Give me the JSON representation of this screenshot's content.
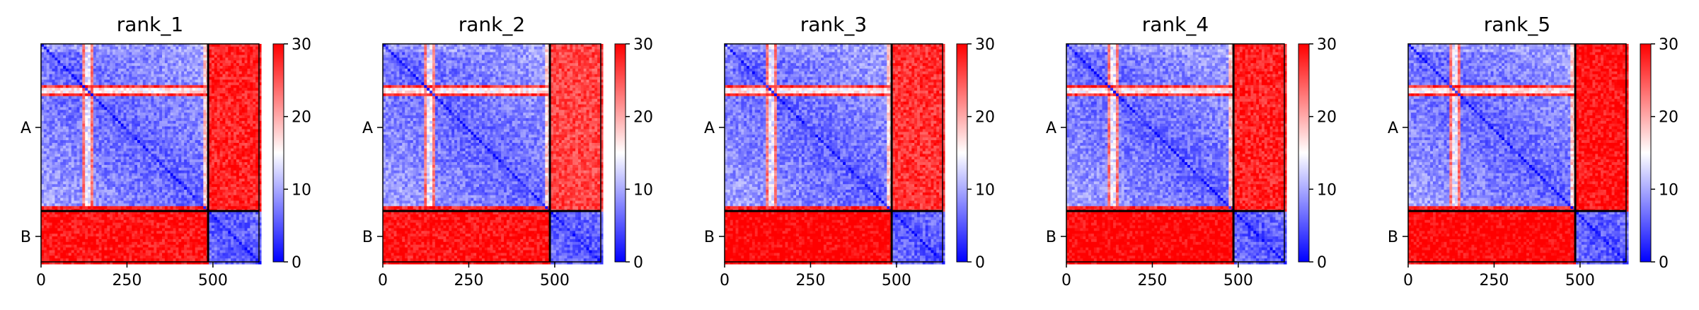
{
  "chart_data": [
    {
      "type": "heatmap",
      "title": "rank_1",
      "xticks": [
        0,
        250,
        500
      ],
      "ytick_labels": [
        "A",
        "B"
      ],
      "colorbar": {
        "ticks": [
          0,
          10,
          20,
          30
        ],
        "range": [
          0,
          30
        ],
        "colormap": "bwr"
      },
      "xlim": [
        0,
        634
      ],
      "chains": [
        {
          "name": "A",
          "start": 0,
          "end": 486
        },
        {
          "name": "B",
          "start": 486,
          "end": 634
        }
      ],
      "blocks": {
        "AA": 6,
        "AB": 28,
        "BA": 29,
        "BB": 5
      },
      "high_error_bands": [
        {
          "start": 0,
          "end": 18,
          "value": 9
        },
        {
          "start": 125,
          "end": 140,
          "value": 16
        },
        {
          "start": 120,
          "end": 150,
          "value": 27
        }
      ]
    },
    {
      "type": "heatmap",
      "title": "rank_2",
      "xticks": [
        0,
        250,
        500
      ],
      "ytick_labels": [
        "A",
        "B"
      ],
      "colorbar": {
        "ticks": [
          0,
          10,
          20,
          30
        ],
        "range": [
          0,
          30
        ],
        "colormap": "bwr"
      },
      "xlim": [
        0,
        634
      ],
      "chains": [
        {
          "name": "A",
          "start": 0,
          "end": 486
        },
        {
          "name": "B",
          "start": 486,
          "end": 634
        }
      ],
      "blocks": {
        "AA": 6,
        "AB": 26,
        "BA": 29,
        "BB": 5
      },
      "high_error_bands": [
        {
          "start": 0,
          "end": 18,
          "value": 9
        },
        {
          "start": 125,
          "end": 140,
          "value": 16
        },
        {
          "start": 120,
          "end": 150,
          "value": 27
        }
      ]
    },
    {
      "type": "heatmap",
      "title": "rank_3",
      "xticks": [
        0,
        250,
        500
      ],
      "ytick_labels": [
        "A",
        "B"
      ],
      "colorbar": {
        "ticks": [
          0,
          10,
          20,
          30
        ],
        "range": [
          0,
          30
        ],
        "colormap": "bwr"
      },
      "xlim": [
        0,
        634
      ],
      "chains": [
        {
          "name": "A",
          "start": 0,
          "end": 486
        },
        {
          "name": "B",
          "start": 486,
          "end": 634
        }
      ],
      "blocks": {
        "AA": 6,
        "AB": 27,
        "BA": 30,
        "BB": 5
      },
      "high_error_bands": [
        {
          "start": 0,
          "end": 18,
          "value": 9
        },
        {
          "start": 125,
          "end": 140,
          "value": 16
        },
        {
          "start": 120,
          "end": 150,
          "value": 27
        }
      ]
    },
    {
      "type": "heatmap",
      "title": "rank_4",
      "xticks": [
        0,
        250,
        500
      ],
      "ytick_labels": [
        "A",
        "B"
      ],
      "colorbar": {
        "ticks": [
          0,
          10,
          20,
          30
        ],
        "range": [
          0,
          30
        ],
        "colormap": "bwr"
      },
      "xlim": [
        0,
        634
      ],
      "chains": [
        {
          "name": "A",
          "start": 0,
          "end": 486
        },
        {
          "name": "B",
          "start": 486,
          "end": 634
        }
      ],
      "blocks": {
        "AA": 6,
        "AB": 28,
        "BA": 30,
        "BB": 5
      },
      "high_error_bands": [
        {
          "start": 0,
          "end": 18,
          "value": 9
        },
        {
          "start": 125,
          "end": 140,
          "value": 16
        },
        {
          "start": 120,
          "end": 150,
          "value": 27
        }
      ]
    },
    {
      "type": "heatmap",
      "title": "rank_5",
      "xticks": [
        0,
        250,
        500
      ],
      "ytick_labels": [
        "A",
        "B"
      ],
      "colorbar": {
        "ticks": [
          0,
          10,
          20,
          30
        ],
        "range": [
          0,
          30
        ],
        "colormap": "bwr"
      },
      "xlim": [
        0,
        634
      ],
      "chains": [
        {
          "name": "A",
          "start": 0,
          "end": 486
        },
        {
          "name": "B",
          "start": 486,
          "end": 634
        }
      ],
      "blocks": {
        "AA": 6,
        "AB": 29,
        "BA": 30,
        "BB": 5
      },
      "high_error_bands": [
        {
          "start": 0,
          "end": 18,
          "value": 9
        },
        {
          "start": 125,
          "end": 140,
          "value": 16
        },
        {
          "start": 120,
          "end": 150,
          "value": 27
        }
      ]
    }
  ]
}
